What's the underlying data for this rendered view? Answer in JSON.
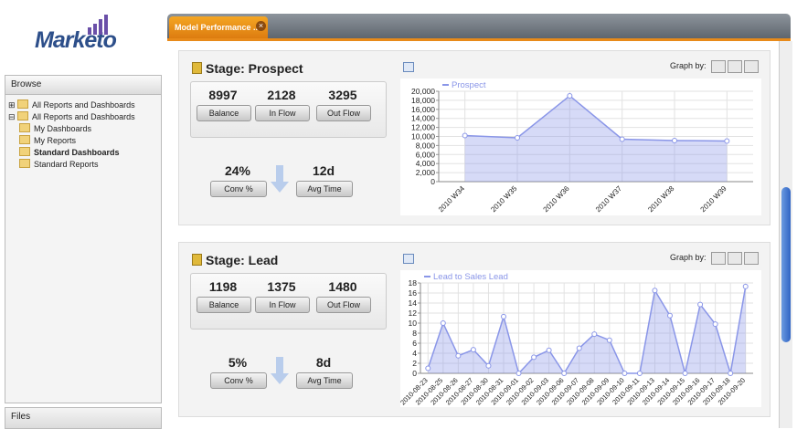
{
  "logo": "Marketo",
  "sidebar": {
    "title": "Browse",
    "tree": [
      "All Reports and Dashboards",
      "All Reports and Dashboards",
      "My Dashboards",
      "My Reports",
      "Standard Dashboards",
      "Standard Reports"
    ],
    "footer": "Files"
  },
  "tab": "Model Performance ..",
  "panels": [
    {
      "title": "Stage: Prospect",
      "graph_by": "Graph by:",
      "stats": [
        {
          "value": 8997,
          "label": "Balance"
        },
        {
          "value": 2128,
          "label": "In Flow"
        },
        {
          "value": 3295,
          "label": "Out Flow"
        }
      ],
      "conv": {
        "value": "24%",
        "label": "Conv %"
      },
      "avg": {
        "value": "12d",
        "label": "Avg Time"
      }
    },
    {
      "title": "Stage: Lead",
      "graph_by": "Graph by:",
      "stats": [
        {
          "value": 1198,
          "label": "Balance"
        },
        {
          "value": 1375,
          "label": "In Flow"
        },
        {
          "value": 1480,
          "label": "Out Flow"
        }
      ],
      "conv": {
        "value": "5%",
        "label": "Conv %"
      },
      "avg": {
        "value": "8d",
        "label": "Avg Time"
      }
    }
  ],
  "chart_data": [
    {
      "type": "area",
      "categories": [
        "2010 W34",
        "2010 W35",
        "2010 W36",
        "2010 W37",
        "2010 W38",
        "2010 W39"
      ],
      "series": [
        {
          "name": "Prospect",
          "color": "#8a96e8",
          "values": [
            10200,
            9700,
            19000,
            9400,
            9100,
            9000
          ]
        }
      ],
      "ylim": [
        0,
        20000
      ],
      "yticks": [
        0,
        {
          "value": 2000,
          "label": "2,000"
        },
        {
          "value": 4000,
          "label": "4,000"
        },
        {
          "value": 6000,
          "label": "6,000"
        },
        {
          "value": 8000,
          "label": "8,000"
        },
        {
          "value": 10000,
          "label": "10,000"
        },
        {
          "value": 12000,
          "label": "12,000"
        },
        {
          "value": 14000,
          "label": "14,000"
        },
        {
          "value": 16000,
          "label": "16,000"
        },
        {
          "value": 18000,
          "label": "18,000"
        },
        {
          "value": 20000,
          "label": "20,000"
        }
      ],
      "grid": true
    },
    {
      "type": "area",
      "categories": [
        "2010-08-23",
        "2010-08-25",
        "2010-08-26",
        "2010-08-27",
        "2010-08-30",
        "2010-08-31",
        "2010-09-01",
        "2010-09-02",
        "2010-09-03",
        "2010-09-06",
        "2010-09-07",
        "2010-09-08",
        "2010-09-09",
        "2010-09-10",
        "2010-09-11",
        "2010-09-13",
        "2010-09-14",
        "2010-09-15",
        "2010-09-16",
        "2010-09-17",
        "2010-09-18",
        "2010-09-20"
      ],
      "series": [
        {
          "name": "Lead to Sales Lead",
          "color": "#8a96e8",
          "values": [
            1,
            10,
            3.5,
            4.7,
            1.5,
            11.3,
            0,
            3.2,
            4.6,
            0,
            5,
            7.8,
            6.6,
            0,
            0,
            16.5,
            11.5,
            0,
            13.7,
            9.8,
            0,
            17.3
          ]
        }
      ],
      "ylim": [
        0,
        18
      ],
      "yticks": [
        0,
        2,
        4,
        6,
        8,
        10,
        12,
        14,
        16,
        18
      ],
      "grid": true
    }
  ]
}
